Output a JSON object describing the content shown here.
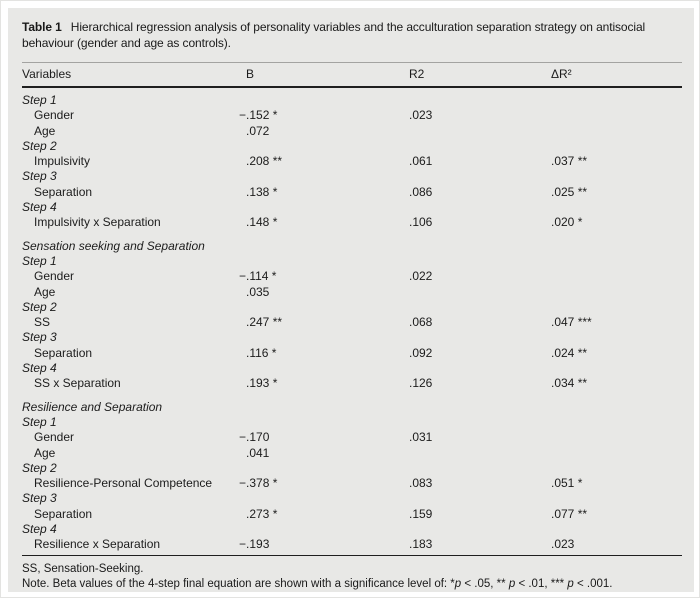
{
  "title": {
    "label": "Table 1",
    "text": "Hierarchical regression analysis of personality variables and the acculturation separation strategy on antisocial behaviour (gender and age as controls)."
  },
  "table": {
    "columns": [
      "Variables",
      "B",
      "R2",
      "ΔR²"
    ],
    "rows": [
      {
        "type": "step",
        "label": "Step 1",
        "b": "",
        "r2": "",
        "dr2": ""
      },
      {
        "type": "item",
        "label": "Gender",
        "b": "−.152 *",
        "r2": ".023",
        "dr2": ""
      },
      {
        "type": "item",
        "label": "Age",
        "b": ".072",
        "r2": "",
        "dr2": ""
      },
      {
        "type": "step",
        "label": "Step 2",
        "b": "",
        "r2": "",
        "dr2": ""
      },
      {
        "type": "item",
        "label": "Impulsivity",
        "b": ".208 **",
        "r2": ".061",
        "dr2": ".037 **"
      },
      {
        "type": "step",
        "label": "Step 3",
        "b": "",
        "r2": "",
        "dr2": ""
      },
      {
        "type": "item",
        "label": "Separation",
        "b": ".138 *",
        "r2": ".086",
        "dr2": ".025 **"
      },
      {
        "type": "step",
        "label": "Step 4",
        "b": "",
        "r2": "",
        "dr2": ""
      },
      {
        "type": "item",
        "label": "Impulsivity x Separation",
        "b": ".148 *",
        "r2": ".106",
        "dr2": ".020 *"
      },
      {
        "type": "gap"
      },
      {
        "type": "section",
        "label": "Sensation seeking and Separation",
        "b": "",
        "r2": "",
        "dr2": ""
      },
      {
        "type": "step",
        "label": "Step 1",
        "b": "",
        "r2": "",
        "dr2": ""
      },
      {
        "type": "item",
        "label": "Gender",
        "b": "−.114 *",
        "r2": ".022",
        "dr2": ""
      },
      {
        "type": "item",
        "label": "Age",
        "b": ".035",
        "r2": "",
        "dr2": ""
      },
      {
        "type": "step",
        "label": "Step 2",
        "b": "",
        "r2": "",
        "dr2": ""
      },
      {
        "type": "item",
        "label": "SS",
        "b": ".247 **",
        "r2": ".068",
        "dr2": ".047 ***"
      },
      {
        "type": "step",
        "label": "Step 3",
        "b": "",
        "r2": "",
        "dr2": ""
      },
      {
        "type": "item",
        "label": "Separation",
        "b": ".116 *",
        "r2": ".092",
        "dr2": ".024 **"
      },
      {
        "type": "step",
        "label": "Step 4",
        "b": "",
        "r2": "",
        "dr2": ""
      },
      {
        "type": "item",
        "label": "SS x Separation",
        "b": ".193 *",
        "r2": ".126",
        "dr2": ".034 **"
      },
      {
        "type": "gap"
      },
      {
        "type": "section",
        "label": "Resilience and Separation",
        "b": "",
        "r2": "",
        "dr2": ""
      },
      {
        "type": "step",
        "label": "Step 1",
        "b": "",
        "r2": "",
        "dr2": ""
      },
      {
        "type": "item",
        "label": "Gender",
        "b": "−.170",
        "r2": ".031",
        "dr2": ""
      },
      {
        "type": "item",
        "label": "Age",
        "b": ".041",
        "r2": "",
        "dr2": ""
      },
      {
        "type": "step",
        "label": "Step 2",
        "b": "",
        "r2": "",
        "dr2": ""
      },
      {
        "type": "item",
        "label": "Resilience-Personal Competence",
        "b": "−.378 *",
        "r2": ".083",
        "dr2": ".051 *"
      },
      {
        "type": "step",
        "label": "Step 3",
        "b": "",
        "r2": "",
        "dr2": ""
      },
      {
        "type": "item",
        "label": "Separation",
        "b": ".273 *",
        "r2": ".159",
        "dr2": ".077 **"
      },
      {
        "type": "step",
        "label": "Step 4",
        "b": "",
        "r2": "",
        "dr2": ""
      },
      {
        "type": "item",
        "label": "Resilience x Separation",
        "b": "−.193",
        "r2": ".183",
        "dr2": ".023"
      }
    ]
  },
  "footnotes": {
    "abbrev": "SS, Sensation-Seeking.",
    "note": {
      "seg1": "Note. Beta values of the 4-step final equation are shown with a significance level of: *",
      "p1": "p",
      "seg2": " < .05, ** ",
      "p2": "p",
      "seg3": " < .01, *** ",
      "p3": "p",
      "seg4": " < .001."
    }
  },
  "colors": {
    "panel_bg": "#e8e8e6",
    "text": "#1c1c1c",
    "rule_dark": "#1f1f1f",
    "rule_light": "#a3a3a1"
  }
}
